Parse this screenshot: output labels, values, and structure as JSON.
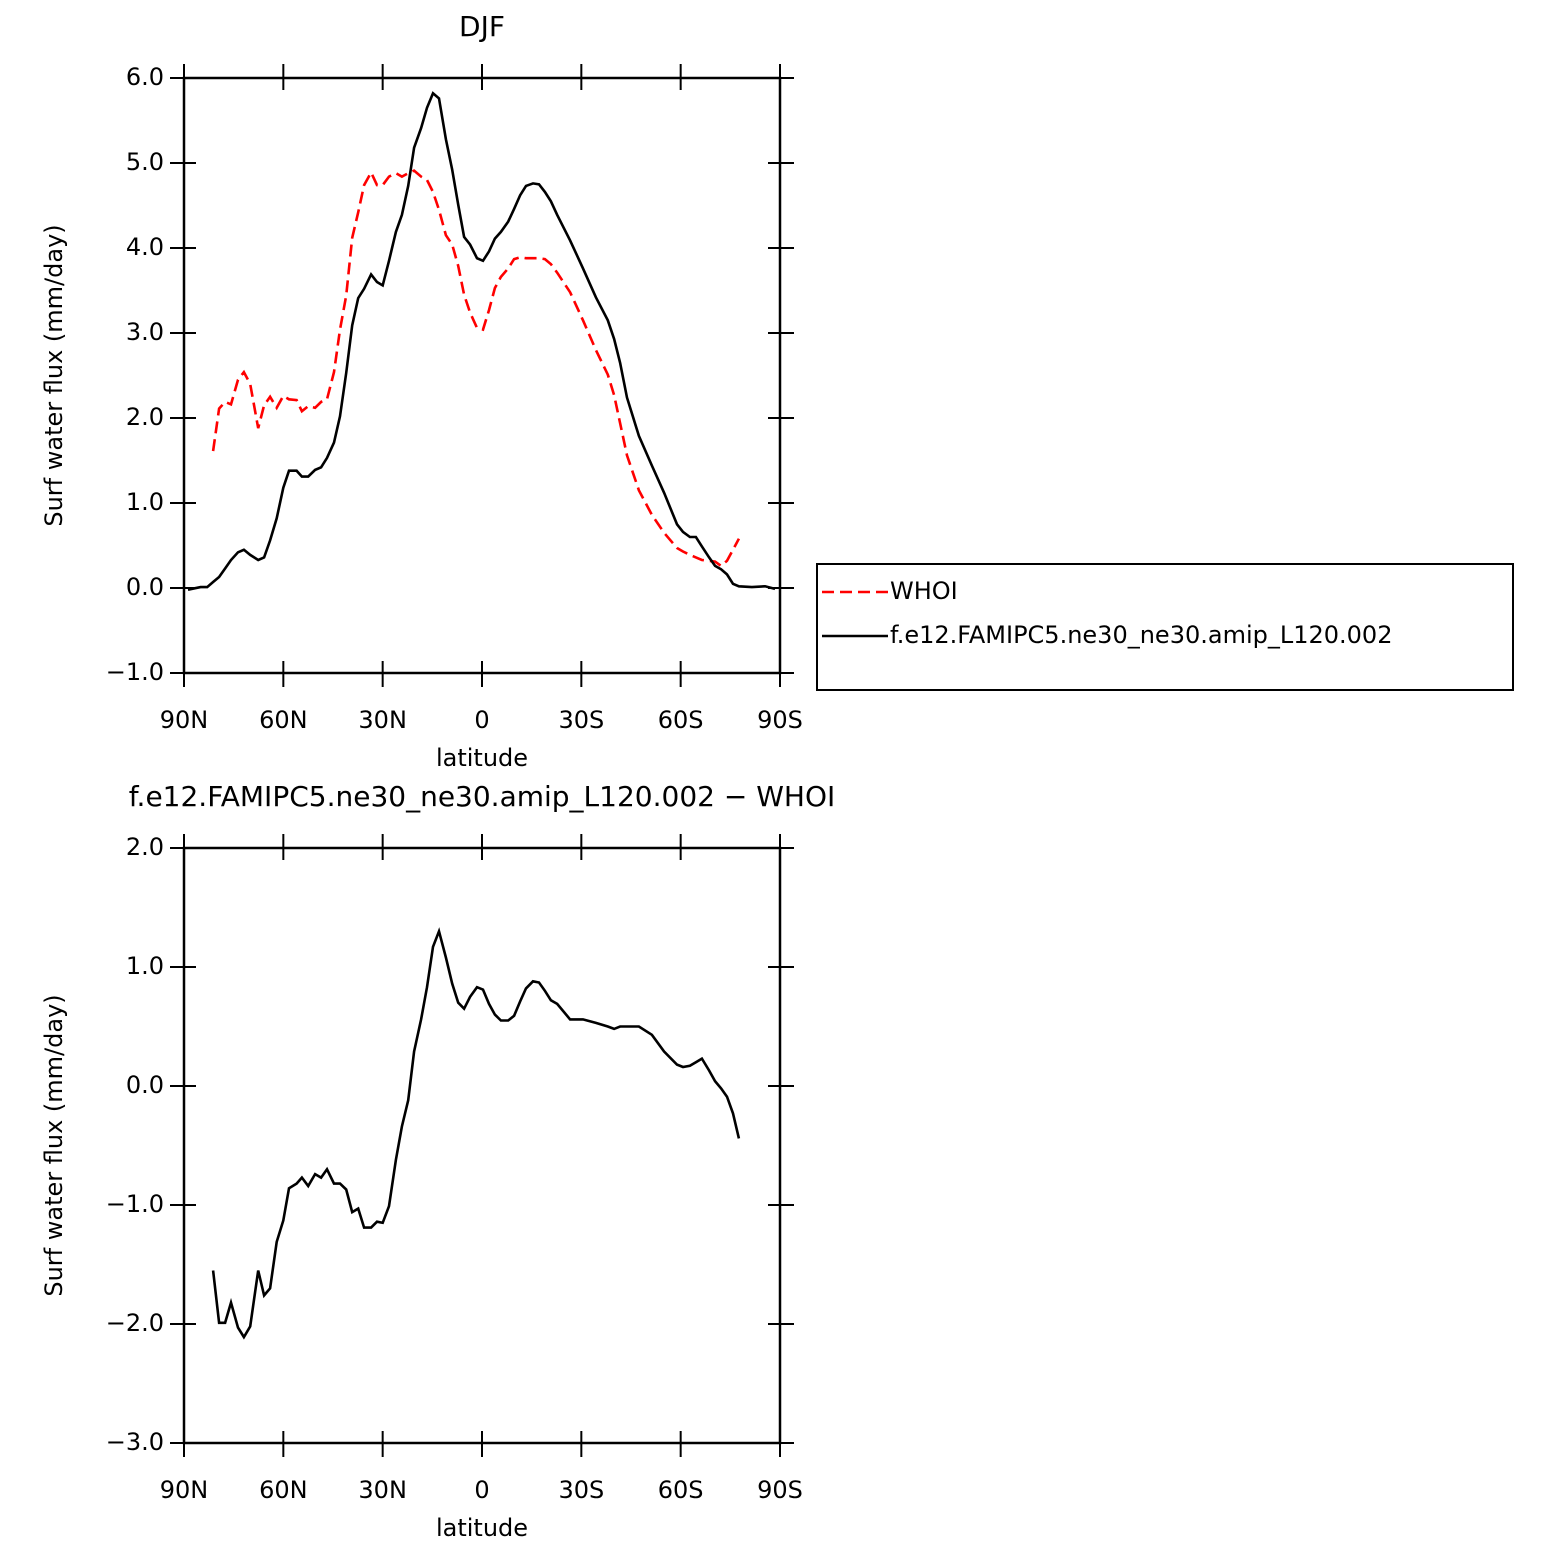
{
  "chart_data": [
    {
      "type": "line",
      "title": "DJF",
      "x_label": "latitude",
      "y_label": "Surf water flux (mm/day)",
      "x": [
        88.8,
        85,
        83,
        81.2,
        79.4,
        77.6,
        75.8,
        73.7,
        71.9,
        70,
        67.6,
        65.8,
        64,
        62,
        60,
        58.3,
        56,
        54.4,
        52.5,
        50.4,
        48.6,
        46.8,
        44.7,
        42.9,
        41,
        39.2,
        37.4,
        35.6,
        33.5,
        31.7,
        30,
        28.1,
        26,
        24.2,
        22.3,
        20.5,
        18.4,
        16.6,
        14.8,
        13,
        10.9,
        9,
        7.2,
        5.4,
        3.6,
        1.5,
        -0.3,
        -2.1,
        -3.9,
        -5.7,
        -7.9,
        -9.7,
        -11.5,
        -13.3,
        -15.4,
        -17.2,
        -19,
        -20.8,
        -22.7,
        -26.6,
        -30.5,
        -34.4,
        -38,
        -39.9,
        -41.7,
        -43.8,
        -47.4,
        -51.3,
        -55,
        -58.9,
        -60.7,
        -62.8,
        -64.6,
        -66.4,
        -68.6,
        -70.4,
        -72.2,
        -74,
        -75.8,
        -77.6,
        -81.5,
        -85.5,
        -88.5
      ],
      "series": [
        {
          "name": "WHOI",
          "color": "#ff0000",
          "dash": "dashed",
          "values": [
            null,
            null,
            null,
            1.61,
            2.11,
            2.19,
            2.16,
            2.45,
            2.54,
            2.4,
            1.88,
            2.15,
            2.25,
            2.12,
            2.26,
            2.22,
            2.21,
            2.08,
            2.14,
            2.12,
            2.19,
            2.22,
            2.54,
            3.04,
            3.44,
            4.12,
            4.42,
            4.74,
            4.89,
            4.74,
            4.74,
            4.84,
            4.88,
            4.84,
            4.88,
            4.91,
            4.84,
            4.8,
            4.66,
            4.45,
            4.15,
            4.04,
            3.79,
            3.45,
            3.24,
            3.06,
            3.04,
            3.27,
            3.53,
            3.66,
            3.76,
            3.87,
            3.89,
            3.88,
            3.88,
            3.88,
            3.87,
            3.81,
            3.71,
            3.48,
            3.15,
            2.8,
            2.51,
            2.27,
            1.94,
            1.56,
            1.15,
            0.86,
            0.65,
            0.47,
            0.43,
            0.39,
            0.36,
            0.33,
            0.32,
            0.31,
            0.26,
            0.32,
            0.45,
            0.58,
            null,
            null,
            null
          ]
        },
        {
          "name": "f.e12.FAMIPC5.ne30_ne30.amip_L120.002",
          "color": "#000000",
          "dash": "solid",
          "values": [
            -0.02,
            0.01,
            0.01,
            0.07,
            0.13,
            0.23,
            0.33,
            0.42,
            0.45,
            0.39,
            0.33,
            0.36,
            0.56,
            0.82,
            1.18,
            1.38,
            1.38,
            1.31,
            1.31,
            1.39,
            1.42,
            1.53,
            1.71,
            2.02,
            2.53,
            3.09,
            3.41,
            3.52,
            3.69,
            3.6,
            3.56,
            3.85,
            4.19,
            4.39,
            4.73,
            5.18,
            5.41,
            5.65,
            5.82,
            5.76,
            5.28,
            4.92,
            4.51,
            4.13,
            4.04,
            3.88,
            3.85,
            3.96,
            4.11,
            4.19,
            4.31,
            4.46,
            4.62,
            4.73,
            4.76,
            4.75,
            4.66,
            4.55,
            4.39,
            4.09,
            3.76,
            3.42,
            3.15,
            2.93,
            2.65,
            2.24,
            1.79,
            1.44,
            1.12,
            0.75,
            0.66,
            0.6,
            0.6,
            0.49,
            0.36,
            0.26,
            0.22,
            0.16,
            0.05,
            0.02,
            0.01,
            0.02,
            -0.01
          ]
        }
      ],
      "xlim": [
        90,
        -90
      ],
      "xticks": [
        {
          "value": 90,
          "label": "90N"
        },
        {
          "value": 60,
          "label": "60N"
        },
        {
          "value": 30,
          "label": "30N"
        },
        0,
        {
          "value": -30,
          "label": "30S"
        },
        {
          "value": -60,
          "label": "60S"
        },
        {
          "value": -90,
          "label": "90S"
        }
      ],
      "ylim": [
        -1,
        6
      ],
      "yticks": [
        {
          "value": -1,
          "label": "−1.0"
        },
        {
          "value": 0,
          "label": "0.0"
        },
        {
          "value": 1,
          "label": "1.0"
        },
        {
          "value": 2,
          "label": "2.0"
        },
        {
          "value": 3,
          "label": "3.0"
        },
        {
          "value": 4,
          "label": "4.0"
        },
        {
          "value": 5,
          "label": "5.0"
        },
        {
          "value": 6,
          "label": "6.0"
        }
      ],
      "legend": "right"
    },
    {
      "type": "line",
      "title": "f.e12.FAMIPC5.ne30_ne30.amip_L120.002 − WHOI",
      "x_label": "latitude",
      "y_label": "Surf water flux (mm/day)",
      "x": [
        81.2,
        79.4,
        77.6,
        75.8,
        73.7,
        71.9,
        70,
        67.6,
        65.8,
        64,
        62,
        60,
        58.3,
        56,
        54.4,
        52.5,
        50.4,
        48.6,
        46.8,
        44.7,
        42.9,
        41,
        39.2,
        37.4,
        35.6,
        33.5,
        31.7,
        30,
        28.1,
        26,
        24.2,
        22.3,
        20.5,
        18.4,
        16.6,
        14.8,
        13,
        10.9,
        9,
        7.2,
        5.4,
        3.6,
        1.5,
        -0.3,
        -2.1,
        -3.9,
        -5.7,
        -7.9,
        -9.7,
        -11.5,
        -13.3,
        -15.4,
        -17.2,
        -19,
        -20.8,
        -22.7,
        -26.6,
        -30.5,
        -34.4,
        -38,
        -39.9,
        -41.7,
        -43.8,
        -47.4,
        -51.3,
        -55,
        -58.9,
        -60.7,
        -62.8,
        -64.6,
        -66.4,
        -68.6,
        -70.4,
        -72.2,
        -74,
        -75.8,
        -77.6
      ],
      "values": [
        -1.55,
        -1.99,
        -1.99,
        -1.82,
        -2.03,
        -2.11,
        -2.02,
        -1.55,
        -1.76,
        -1.7,
        -1.31,
        -1.13,
        -0.86,
        -0.82,
        -0.77,
        -0.84,
        -0.74,
        -0.77,
        -0.7,
        -0.82,
        -0.82,
        -0.87,
        -1.06,
        -1.03,
        -1.19,
        -1.19,
        -1.14,
        -1.15,
        -1.01,
        -0.62,
        -0.34,
        -0.12,
        0.29,
        0.56,
        0.83,
        1.17,
        1.3,
        1.08,
        0.86,
        0.7,
        0.65,
        0.75,
        0.83,
        0.81,
        0.69,
        0.6,
        0.55,
        0.55,
        0.59,
        0.71,
        0.82,
        0.88,
        0.87,
        0.8,
        0.72,
        0.69,
        0.56,
        0.56,
        0.53,
        0.5,
        0.48,
        0.5,
        0.5,
        0.5,
        0.43,
        0.29,
        0.18,
        0.16,
        0.17,
        0.2,
        0.23,
        0.13,
        0.04,
        -0.02,
        -0.09,
        -0.23,
        -0.44
      ],
      "color": "#000000",
      "xlim": [
        90,
        -90
      ],
      "xticks": [
        {
          "value": 90,
          "label": "90N"
        },
        {
          "value": 60,
          "label": "60N"
        },
        {
          "value": 30,
          "label": "30N"
        },
        0,
        {
          "value": -30,
          "label": "30S"
        },
        {
          "value": -60,
          "label": "60S"
        },
        {
          "value": -90,
          "label": "90S"
        }
      ],
      "ylim": [
        -3,
        2
      ],
      "yticks": [
        {
          "value": -3,
          "label": "−3.0"
        },
        {
          "value": -2,
          "label": "−2.0"
        },
        {
          "value": -1,
          "label": "−1.0"
        },
        {
          "value": 0,
          "label": "0.0"
        },
        {
          "value": 1,
          "label": "1.0"
        },
        {
          "value": 2,
          "label": "2.0"
        }
      ]
    }
  ]
}
